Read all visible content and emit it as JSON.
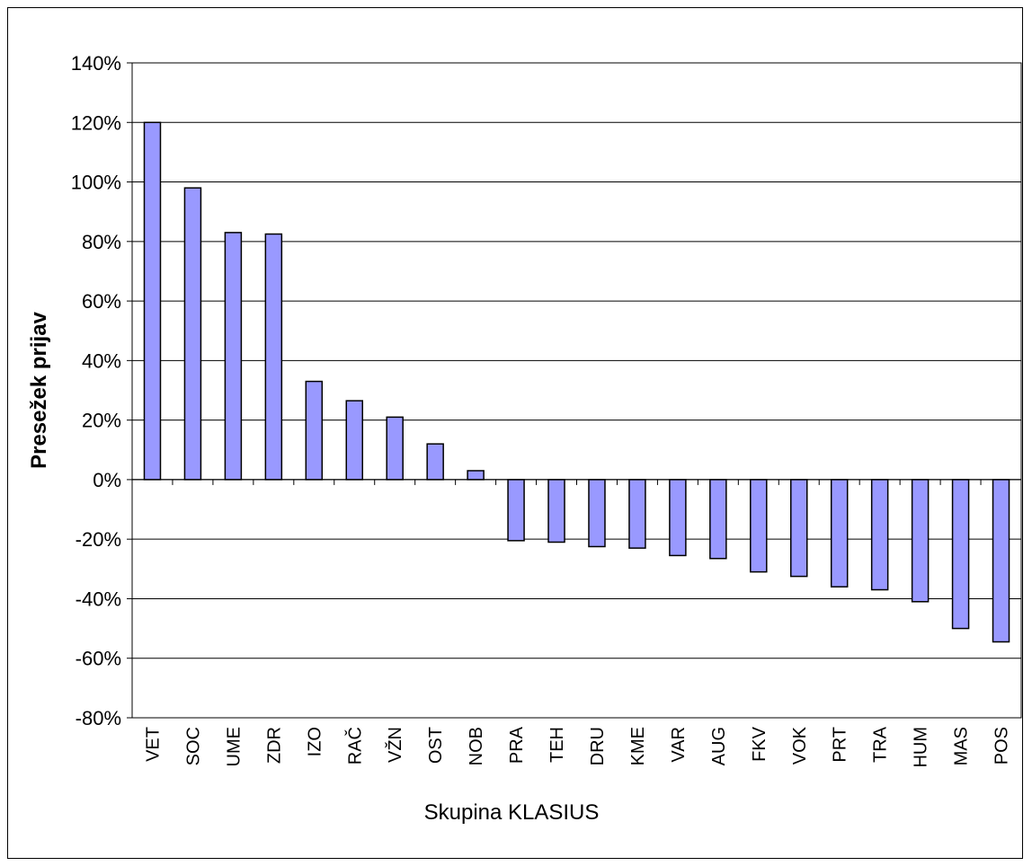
{
  "chart_data": {
    "type": "bar",
    "title": "",
    "xlabel": "Skupina KLASIUS",
    "ylabel": "Presežek prijav",
    "ylim": [
      -80,
      140
    ],
    "ytick_step": 20,
    "ytick_suffix": "%",
    "grid": true,
    "legend": "none",
    "bar_color": "#9999ff",
    "categories": [
      "VET",
      "SOC",
      "UME",
      "ZDR",
      "IZO",
      "RAČ",
      "VŽN",
      "OST",
      "NOB",
      "PRA",
      "TEH",
      "DRU",
      "KME",
      "VAR",
      "AUG",
      "FKV",
      "VOK",
      "PRT",
      "TRA",
      "HUM",
      "MAS",
      "POS"
    ],
    "values": [
      120,
      98,
      83,
      82.5,
      33,
      26.5,
      21,
      12,
      3,
      -20.5,
      -21,
      -22.5,
      -23,
      -25.5,
      -26.5,
      -31,
      -32.5,
      -36,
      -37,
      -41,
      -50,
      -54.5
    ]
  }
}
